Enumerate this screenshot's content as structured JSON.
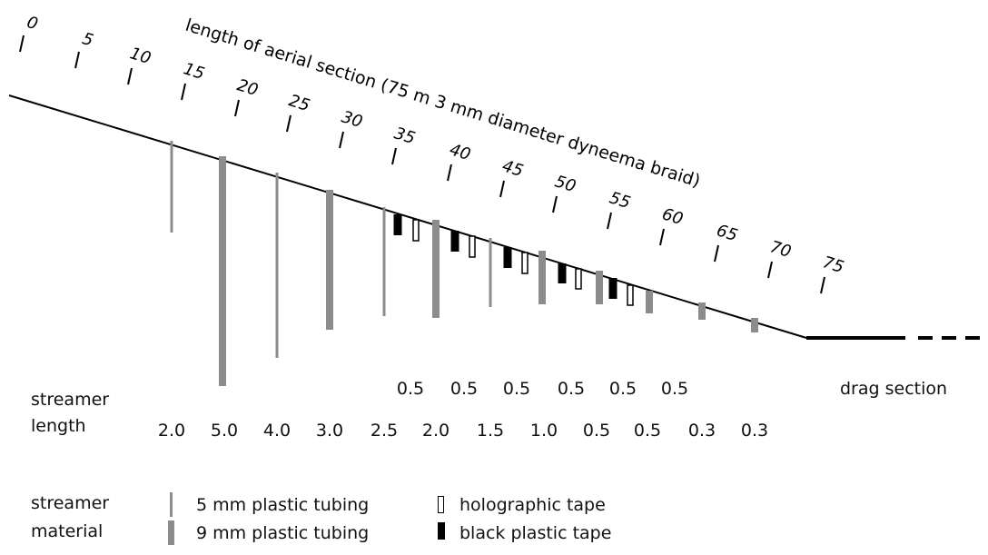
{
  "title": "length of aerial section (75 m 3 mm diameter dyneema braid)",
  "aerial_ticks": [
    "0",
    "5",
    "10",
    "15",
    "20",
    "25",
    "30",
    "35",
    "40",
    "45",
    "50",
    "55",
    "60",
    "65",
    "70",
    "75"
  ],
  "drag_label": "drag section",
  "streamer_length_label_line1": "streamer",
  "streamer_length_label_line2": "length",
  "tape_lengths": [
    "0.5",
    "0.5",
    "0.5",
    "0.5",
    "0.5",
    "0.5"
  ],
  "tubing_lengths": [
    "2.0",
    "5.0",
    "4.0",
    "3.0",
    "2.5",
    "2.0",
    "1.5",
    "1.0",
    "0.5",
    "0.5",
    "0.3",
    "0.3"
  ],
  "legend": {
    "title_line1": "streamer",
    "title_line2": "material",
    "items": [
      {
        "label": "5 mm plastic tubing",
        "icon": "thin-gray-bar"
      },
      {
        "label": "9 mm plastic tubing",
        "icon": "thick-gray-bar"
      },
      {
        "label": "holographic tape",
        "icon": "hollow-rect"
      },
      {
        "label": "black plastic tape",
        "icon": "black-rect"
      }
    ]
  },
  "colors": {
    "tubing": "#8c8c8c",
    "black_tape": "#000000",
    "holographic_tape_fill": "#ffffff",
    "line": "#000000"
  }
}
